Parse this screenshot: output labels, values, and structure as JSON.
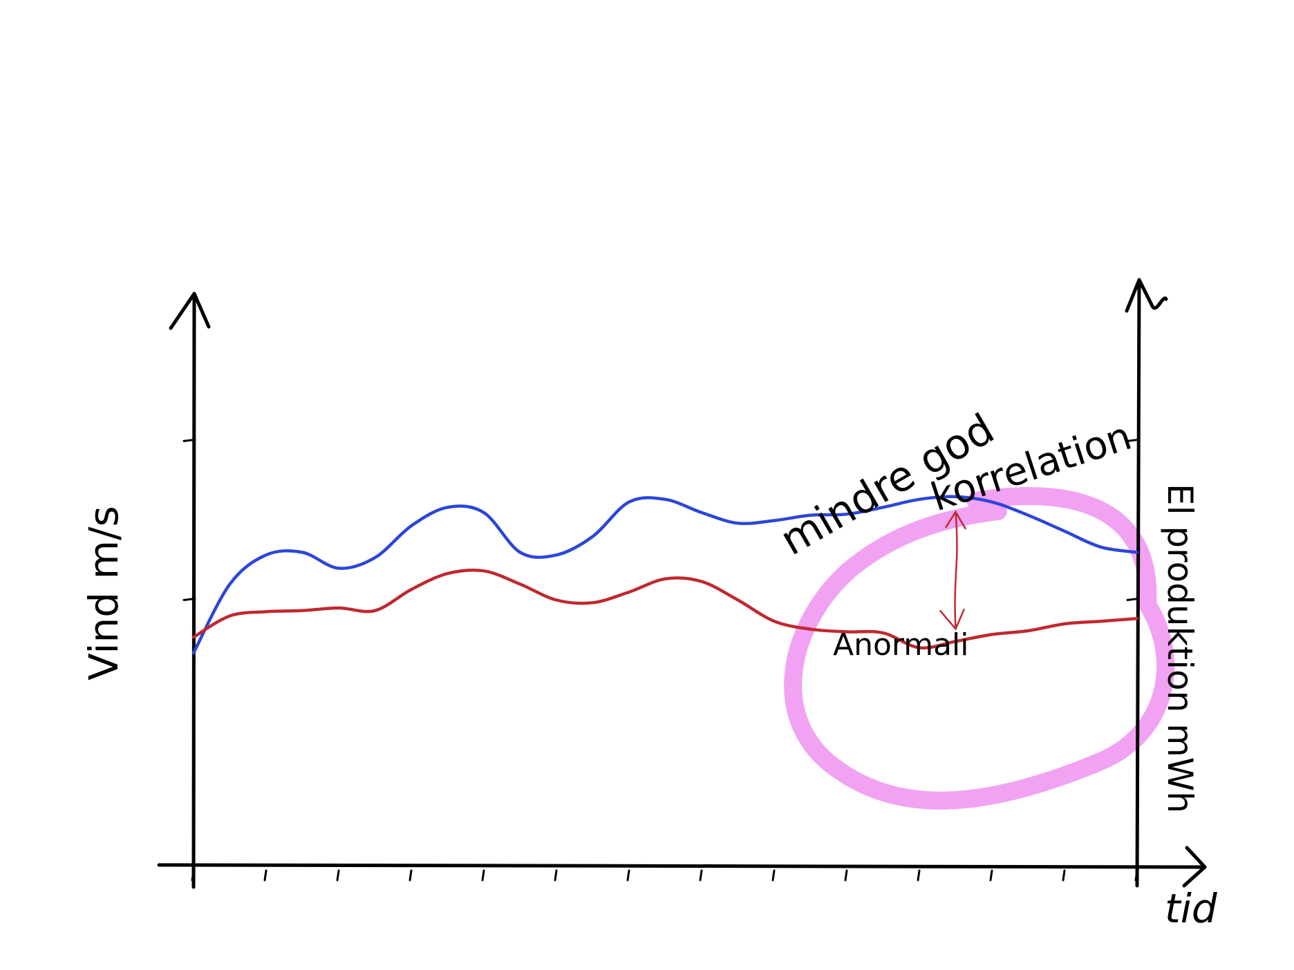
{
  "chart_data": {
    "type": "line",
    "x": [
      0,
      1,
      2,
      3,
      4,
      5,
      6,
      7,
      8,
      9,
      10,
      11,
      12,
      13,
      14,
      15,
      16,
      17,
      18,
      19,
      20,
      21,
      22,
      23,
      24,
      25,
      26
    ],
    "series": [
      {
        "name": "Vind",
        "color": "#2a46d9",
        "axis": "left",
        "values": [
          4.0,
          5.3,
          5.85,
          5.9,
          5.6,
          5.8,
          6.4,
          6.75,
          6.65,
          5.9,
          5.85,
          6.2,
          6.85,
          6.9,
          6.65,
          6.45,
          6.5,
          6.6,
          6.62,
          6.75,
          6.9,
          6.95,
          6.85,
          6.6,
          6.3,
          6.0,
          5.9
        ]
      },
      {
        "name": "El produktion",
        "color": "#c0282f",
        "axis": "right",
        "values": [
          4.3,
          4.7,
          4.78,
          4.8,
          4.85,
          4.8,
          5.2,
          5.5,
          5.55,
          5.3,
          5.0,
          4.95,
          5.15,
          5.4,
          5.35,
          5.0,
          4.6,
          4.45,
          4.4,
          4.38,
          4.1,
          4.22,
          4.35,
          4.42,
          4.55,
          4.6,
          4.65
        ]
      }
    ],
    "ylim": [
      0,
      10
    ],
    "y2lim": [
      0,
      10
    ],
    "xlabel": "tid",
    "ylabel": "Vind m/s",
    "y2label": "El produktion mWh",
    "y_ticks": [
      5,
      8
    ],
    "y2_ticks": [
      5,
      8
    ],
    "x_tick_count": 13,
    "grid": false,
    "annotations": {
      "highlight_text_line1": "mindre god",
      "highlight_text_line2": "korrelation",
      "anomaly_text": "Anormali",
      "highlight_color": "#f09af2",
      "highlight_x_range": [
        17.5,
        26
      ],
      "anomaly_x": 21
    }
  }
}
